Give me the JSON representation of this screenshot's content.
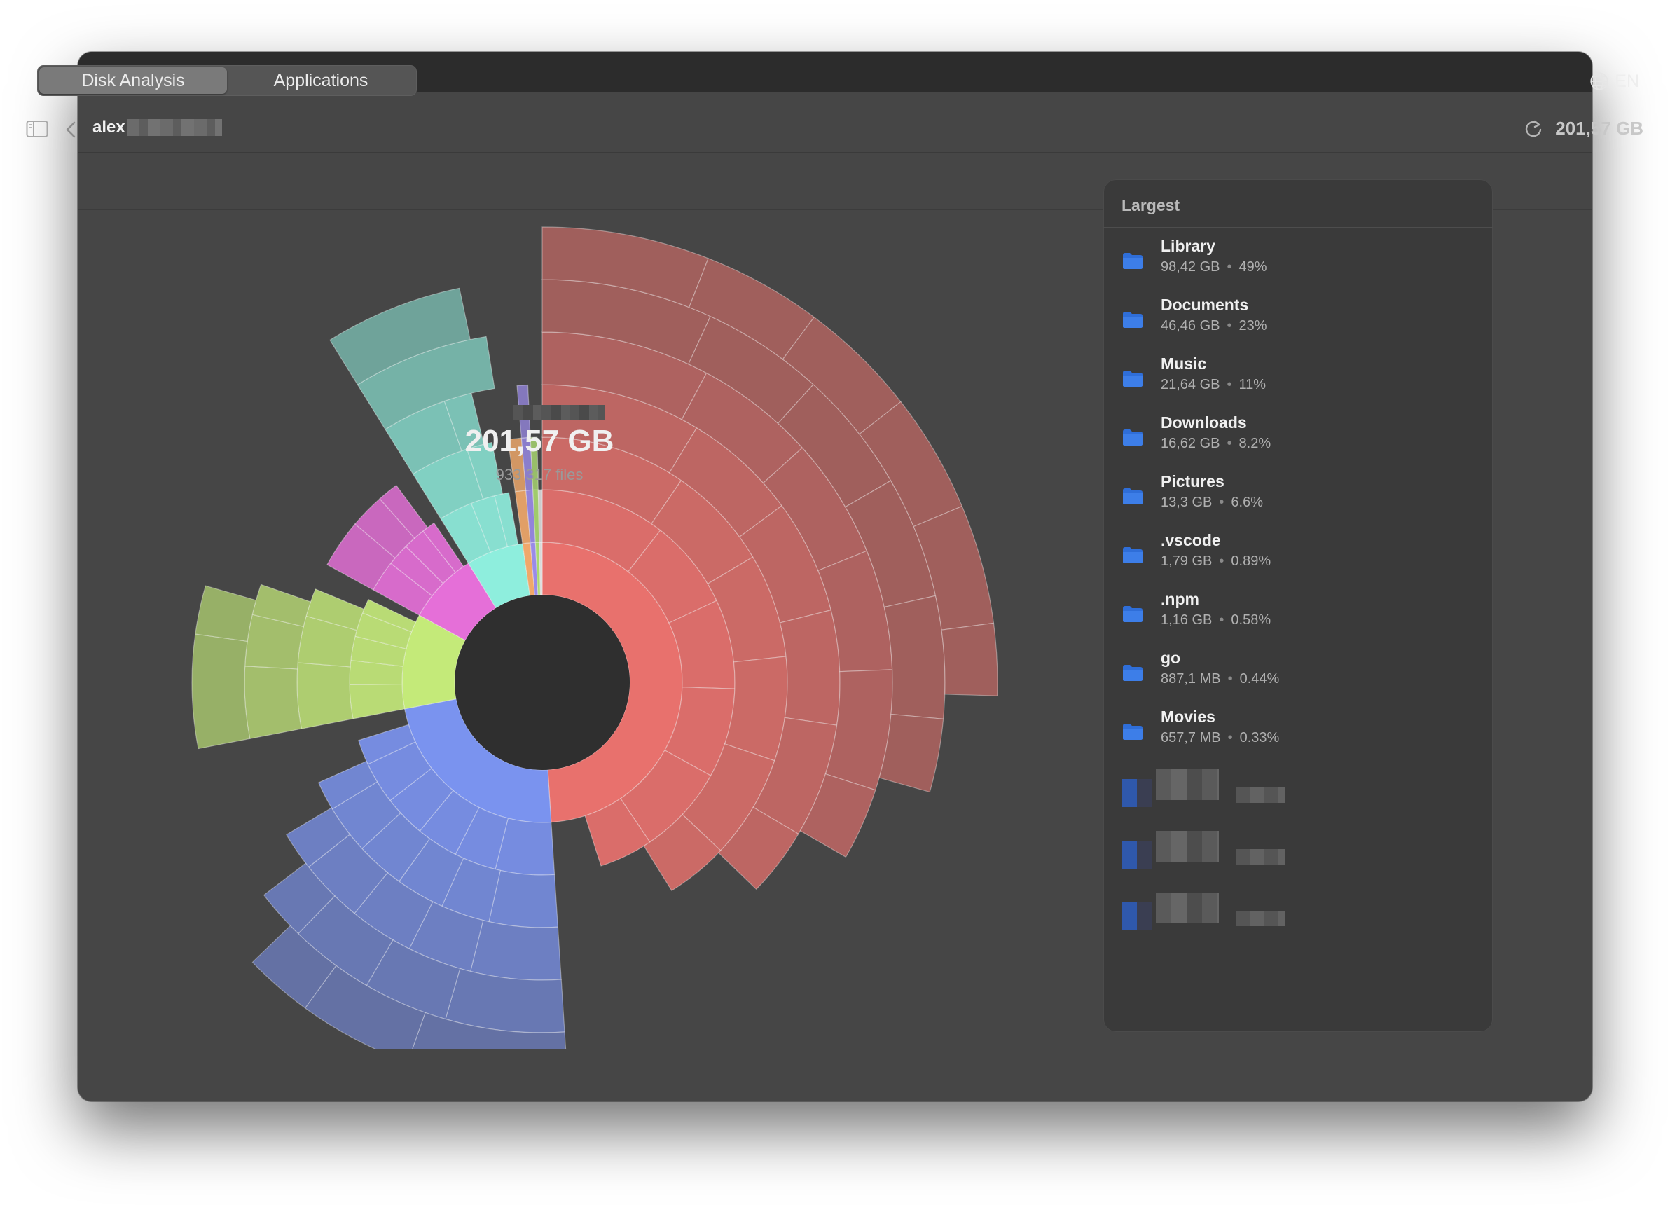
{
  "toolbar": {
    "tabs": [
      {
        "label": "Disk Analysis",
        "active": true
      },
      {
        "label": "Applications",
        "active": false
      }
    ],
    "language": "EN",
    "language_icon": "globe-icon"
  },
  "pathbar": {
    "folder": "alex",
    "total_size": "201,57 GB",
    "refresh_icon": "refresh-icon",
    "sidebar_icon": "sidebar-icon",
    "back_icon": "chevron-left-icon"
  },
  "center": {
    "name": "alex",
    "size": "201,57 GB",
    "files": "933 317 files"
  },
  "largest": {
    "title": "Largest",
    "folder_icon": "folder-icon",
    "items": [
      {
        "name": "Library",
        "size": "98,42 GB",
        "percent": "49%"
      },
      {
        "name": "Documents",
        "size": "46,46 GB",
        "percent": "23%"
      },
      {
        "name": "Music",
        "size": "21,64 GB",
        "percent": "11%"
      },
      {
        "name": "Downloads",
        "size": "16,62 GB",
        "percent": "8.2%"
      },
      {
        "name": "Pictures",
        "size": "13,3 GB",
        "percent": "6.6%"
      },
      {
        "name": ".vscode",
        "size": "1,79 GB",
        "percent": "0.89%"
      },
      {
        "name": ".npm",
        "size": "1,16 GB",
        "percent": "0.58%"
      },
      {
        "name": "go",
        "size": "887,1 MB",
        "percent": "0.44%"
      },
      {
        "name": "Movies",
        "size": "657,7 MB",
        "percent": "0.33%"
      }
    ]
  },
  "chart_data": {
    "type": "sunburst",
    "total": "201,57 GB",
    "segments": [
      {
        "name": "Library",
        "percent": 49,
        "color": "#e8716d"
      },
      {
        "name": "Documents",
        "percent": 23,
        "color": "#7a93ef"
      },
      {
        "name": "Music",
        "percent": 11,
        "color": "#c4ea79"
      },
      {
        "name": "Downloads",
        "percent": 8.2,
        "color": "#e56fd8"
      },
      {
        "name": "Pictures",
        "percent": 6.6,
        "color": "#8eeedd"
      },
      {
        "name": ".vscode",
        "percent": 0.89,
        "color": "#f0a86a"
      },
      {
        "name": ".npm",
        "percent": 0.58,
        "color": "#9a8ae8"
      },
      {
        "name": "go",
        "percent": 0.44,
        "color": "#a9d870"
      },
      {
        "name": "Movies",
        "percent": 0.33,
        "color": "#d9d9d9"
      }
    ]
  }
}
